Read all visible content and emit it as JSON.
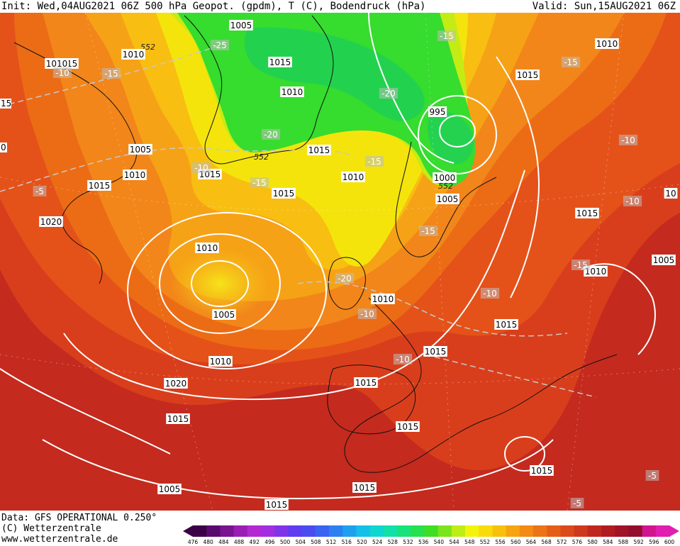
{
  "header": {
    "init": "Init: Wed,04AUG2021 06Z",
    "title": "500 hPa Geopot. (gpdm), T (C), Bodendruck (hPa)",
    "valid": "Valid: Sun,15AUG2021 06Z"
  },
  "footer": {
    "line1": "Data: GFS OPERATIONAL 0.250°",
    "line2": "(C) Wetterzentrale",
    "line3": "www.wetterzentrale.de"
  },
  "legend": {
    "colors": [
      "#3b0046",
      "#5a0a6e",
      "#7a1490",
      "#9a1eb4",
      "#b428d2",
      "#a22ee0",
      "#7f34e8",
      "#5f3cef",
      "#4a4cf2",
      "#3a63f2",
      "#2c80f0",
      "#1ea0ee",
      "#14bfe8",
      "#10d6d0",
      "#12e0a8",
      "#18e27a",
      "#26e04e",
      "#3ede24",
      "#7ae41c",
      "#bdee16",
      "#f4f40a",
      "#f8dc0a",
      "#f8c00c",
      "#f6a410",
      "#f28a14",
      "#ec7416",
      "#e45e18",
      "#da4a1a",
      "#ce381c",
      "#c0281e",
      "#b01c20",
      "#a01426",
      "#920e2c",
      "#d2148e",
      "#e01eb0"
    ],
    "ticks": [
      "476",
      "480",
      "484",
      "488",
      "492",
      "496",
      "500",
      "504",
      "508",
      "512",
      "516",
      "520",
      "524",
      "528",
      "532",
      "536",
      "540",
      "544",
      "548",
      "552",
      "556",
      "560",
      "564",
      "568",
      "572",
      "576",
      "580",
      "584",
      "588",
      "592",
      "596",
      "600"
    ]
  },
  "isobar_labels": [
    "1005",
    "1010",
    "1015",
    "1015",
    "1010",
    "1015",
    "1010",
    "1005",
    "1010",
    "1015",
    "1015",
    "1020",
    "1005",
    "1015",
    "1010",
    "1010",
    "995",
    "1000",
    "1005",
    "1010",
    "1005",
    "1010",
    "1015",
    "1015",
    "1015",
    "1020",
    "1015",
    "1015",
    "1015",
    "1015",
    "1020",
    "1015",
    "1010",
    "1015",
    "1005",
    "1010",
    "1015",
    "10"
  ],
  "temp_labels": [
    "-25",
    "-10",
    "-15",
    "-20",
    "-15",
    "-20",
    "-15",
    "-15",
    "-10",
    "-5",
    "-15",
    "-20",
    "-10",
    "-15",
    "-10",
    "-10",
    "-10",
    "-15",
    "-10",
    "-5",
    "-5"
  ],
  "geopot_labels": [
    "552",
    "552",
    "552"
  ],
  "edge_labels": [
    "15",
    "0"
  ]
}
